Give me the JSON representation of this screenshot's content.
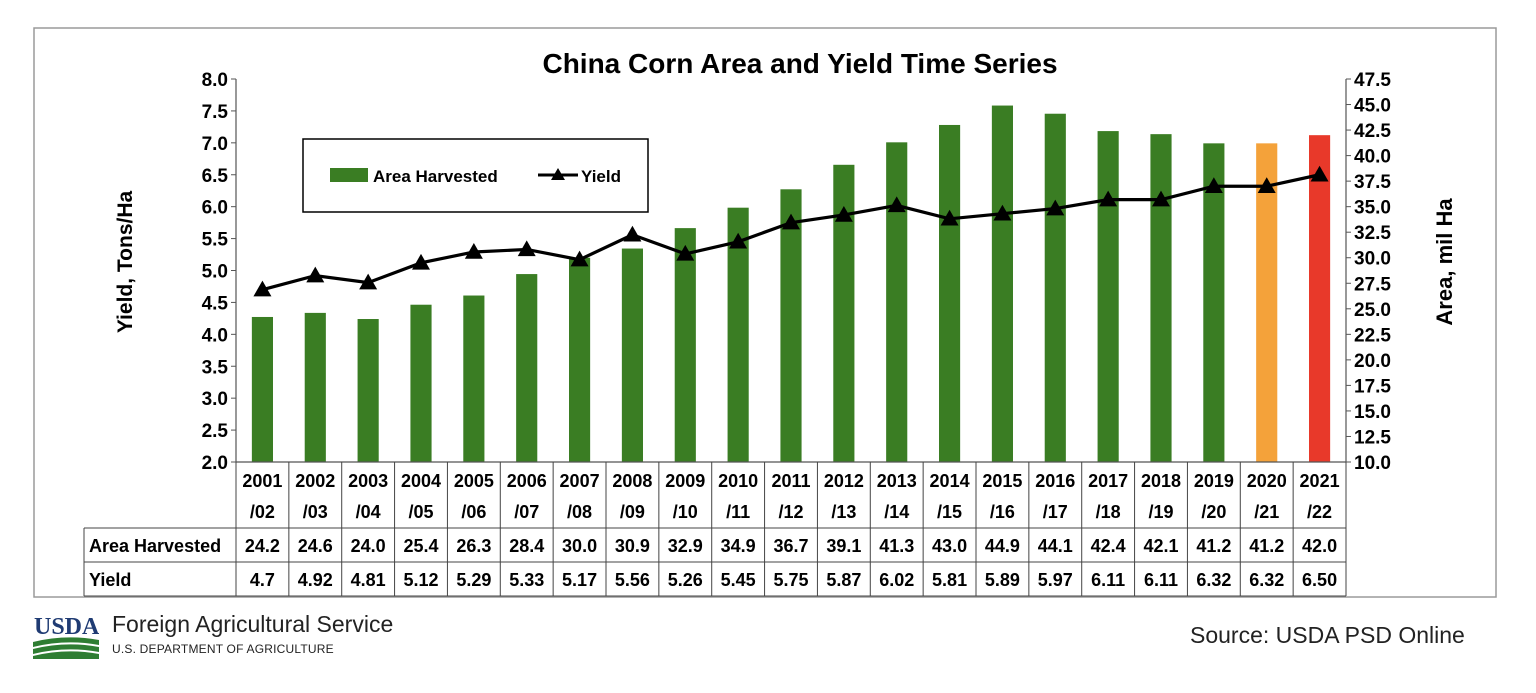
{
  "chart_data": {
    "type": "bar",
    "title": "China Corn Area and Yield Time Series",
    "ylabel_left": "Yield, Tons/Ha",
    "ylabel_right": "Area, mil Ha",
    "ylim_left": [
      2.0,
      8.0
    ],
    "ylim_right": [
      10.0,
      47.5
    ],
    "yticks_left": [
      "2.0",
      "2.5",
      "3.0",
      "3.5",
      "4.0",
      "4.5",
      "5.0",
      "5.5",
      "6.0",
      "6.5",
      "7.0",
      "7.5",
      "8.0"
    ],
    "yticks_right": [
      "10.0",
      "12.5",
      "15.0",
      "17.5",
      "20.0",
      "22.5",
      "25.0",
      "27.5",
      "30.0",
      "32.5",
      "35.0",
      "37.5",
      "40.0",
      "42.5",
      "45.0",
      "47.5"
    ],
    "categories": [
      [
        "2001",
        "/02"
      ],
      [
        "2002",
        "/03"
      ],
      [
        "2003",
        "/04"
      ],
      [
        "2004",
        "/05"
      ],
      [
        "2005",
        "/06"
      ],
      [
        "2006",
        "/07"
      ],
      [
        "2007",
        "/08"
      ],
      [
        "2008",
        "/09"
      ],
      [
        "2009",
        "/10"
      ],
      [
        "2010",
        "/11"
      ],
      [
        "2011",
        "/12"
      ],
      [
        "2012",
        "/13"
      ],
      [
        "2013",
        "/14"
      ],
      [
        "2014",
        "/15"
      ],
      [
        "2015",
        "/16"
      ],
      [
        "2016",
        "/17"
      ],
      [
        "2017",
        "/18"
      ],
      [
        "2018",
        "/19"
      ],
      [
        "2019",
        "/20"
      ],
      [
        "2020",
        "/21"
      ],
      [
        "2021",
        "/22"
      ]
    ],
    "series": [
      {
        "name": "Area Harvested",
        "type": "bar",
        "axis": "right",
        "color": "#3a7d23",
        "values": [
          24.2,
          24.6,
          24.0,
          25.4,
          26.3,
          28.4,
          30.0,
          30.9,
          32.9,
          34.9,
          36.7,
          39.1,
          41.3,
          43.0,
          44.9,
          44.1,
          42.4,
          42.1,
          41.2,
          41.2,
          42.0
        ],
        "labels": [
          "24.2",
          "24.6",
          "24.0",
          "25.4",
          "26.3",
          "28.4",
          "30.0",
          "30.9",
          "32.9",
          "34.9",
          "36.7",
          "39.1",
          "41.3",
          "43.0",
          "44.9",
          "44.1",
          "42.4",
          "42.1",
          "41.2",
          "41.2",
          "42.0"
        ],
        "highlight_colors": {
          "19": "#f4a23a",
          "20": "#e8392a"
        }
      },
      {
        "name": "Yield",
        "type": "line",
        "axis": "left",
        "color": "#000000",
        "marker": "triangle",
        "values": [
          4.7,
          4.92,
          4.81,
          5.12,
          5.29,
          5.33,
          5.17,
          5.56,
          5.26,
          5.45,
          5.75,
          5.87,
          6.02,
          5.81,
          5.89,
          5.97,
          6.11,
          6.11,
          6.32,
          6.32,
          6.5
        ],
        "labels": [
          "4.7",
          "4.92",
          "4.81",
          "5.12",
          "5.29",
          "5.33",
          "5.17",
          "5.56",
          "5.26",
          "5.45",
          "5.75",
          "5.87",
          "6.02",
          "5.81",
          "5.89",
          "5.97",
          "6.11",
          "6.11",
          "6.32",
          "6.32",
          "6.50"
        ]
      }
    ],
    "legend": {
      "placement": "top-left",
      "items": [
        "Area Harvested",
        "Yield"
      ]
    },
    "table_row_labels": [
      "Area Harvested",
      "Yield"
    ]
  },
  "footer": {
    "logo_text": "USDA",
    "org": "Foreign Agricultural Service",
    "dept": "U.S. DEPARTMENT OF AGRICULTURE",
    "source": "Source: USDA PSD Online"
  }
}
